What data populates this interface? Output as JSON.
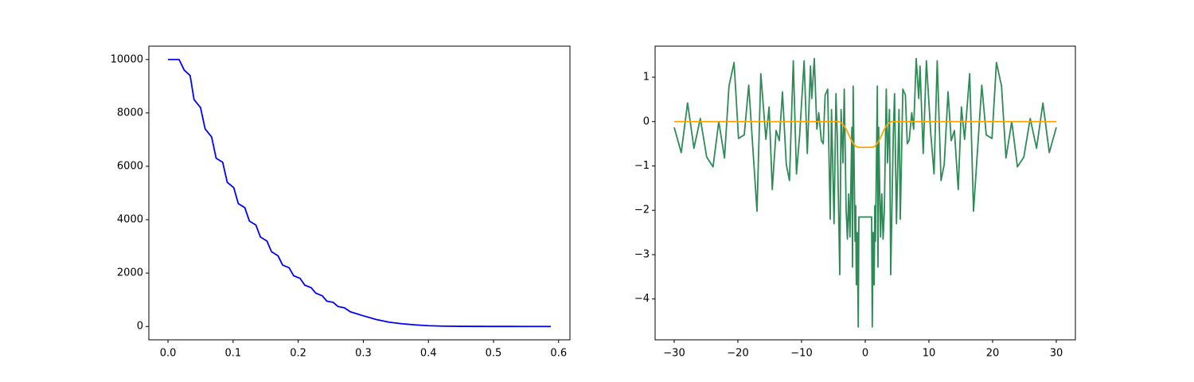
{
  "chart_data": [
    {
      "type": "line",
      "x": [
        0,
        0.017,
        0.025,
        0.034,
        0.04,
        0.05,
        0.057,
        0.067,
        0.074,
        0.084,
        0.091,
        0.101,
        0.108,
        0.118,
        0.125,
        0.135,
        0.142,
        0.152,
        0.159,
        0.169,
        0.176,
        0.186,
        0.193,
        0.203,
        0.21,
        0.22,
        0.227,
        0.237,
        0.244,
        0.254,
        0.261,
        0.271,
        0.28,
        0.3,
        0.32,
        0.34,
        0.36,
        0.38,
        0.4,
        0.42,
        0.45,
        0.5,
        0.55,
        0.588
      ],
      "series": [
        {
          "color": "#0000ff",
          "values": [
            10000,
            10000,
            9600,
            9400,
            8500,
            8200,
            7400,
            7100,
            6300,
            6150,
            5400,
            5200,
            4600,
            4450,
            3950,
            3800,
            3350,
            3200,
            2800,
            2650,
            2300,
            2200,
            1900,
            1800,
            1550,
            1450,
            1250,
            1150,
            950,
            900,
            750,
            700,
            550,
            400,
            260,
            160,
            100,
            60,
            30,
            15,
            5,
            1,
            0,
            0
          ]
        }
      ],
      "xlim": [
        -0.0294,
        0.6174
      ],
      "ylim": [
        -500,
        10500
      ],
      "xticks": [
        {
          "value": 0,
          "label": "0.0"
        },
        0.1,
        0.2,
        0.3,
        0.4,
        0.5,
        0.6
      ],
      "yticks": [
        0,
        2000,
        4000,
        6000,
        8000,
        10000
      ]
    },
    {
      "type": "line",
      "series": [
        {
          "color": "#2e8b57",
          "x": [
            -30,
            -28.9,
            -27.9,
            -26.9,
            -25.9,
            -24.9,
            -23.9,
            -23,
            -22.1,
            -21.4,
            -20.6,
            -19.9,
            -19,
            -18.3,
            -17,
            -16.4,
            -15.6,
            -15.1,
            -14.6,
            -14,
            -13.5,
            -13,
            -12.4,
            -11.9,
            -11.3,
            -10.8,
            -10.3,
            -9.6,
            -9.1,
            -8.6,
            -8.4,
            -8,
            -7.6,
            -7.3,
            -6.9,
            -6.6,
            -6.3,
            -5.9,
            -5.5,
            -5.3,
            -4.9,
            -4.6,
            -4.4,
            -4,
            -3.8,
            -3.5,
            -3.3,
            -3,
            -2.8,
            -2.6,
            -2.4,
            -2.1,
            -2,
            -1.9,
            -1.6,
            -1.5,
            -1.4,
            -1.25,
            -1.1,
            -1,
            0,
            1,
            1.1,
            1.25,
            1.4,
            1.5,
            1.6,
            1.9,
            2,
            2.1,
            2.4,
            2.6,
            2.8,
            3,
            3.3,
            3.5,
            3.8,
            4,
            4.4,
            4.6,
            4.9,
            5.3,
            5.5,
            5.9,
            6.3,
            6.6,
            6.9,
            7.3,
            7.6,
            8,
            8.4,
            8.6,
            9.1,
            9.6,
            10.3,
            10.8,
            11.3,
            11.9,
            12.4,
            13,
            13.5,
            14,
            14.6,
            15.1,
            15.6,
            16.4,
            17,
            18.3,
            19,
            19.9,
            20.6,
            21.4,
            22.1,
            23,
            23.9,
            24.9,
            25.9,
            26.9,
            27.9,
            28.9,
            30
          ],
          "values": [
            -0.13,
            -0.7,
            0.42,
            -0.6,
            0.07,
            -0.8,
            -1.02,
            0,
            -0.82,
            0.8,
            1.33,
            -0.38,
            -0.3,
            0.82,
            -2.02,
            1.08,
            -0.4,
            0.33,
            -1.53,
            -0.2,
            -0.43,
            0.67,
            -0.97,
            -1.33,
            1.37,
            -1.18,
            -0.3,
            1.37,
            -0.72,
            1.25,
            0.52,
            1.42,
            -0.17,
            0.2,
            -0.42,
            -0.5,
            0.6,
            0.73,
            -2.2,
            0.27,
            -2.3,
            0.63,
            -0.3,
            -3.45,
            0.27,
            -0.93,
            0.73,
            -2,
            -2.65,
            -1.63,
            -2.6,
            -0.13,
            -3.28,
            0.8,
            -2.7,
            -1.9,
            -3.68,
            -2.5,
            -4.63,
            -2.15,
            -2.15,
            -2.15,
            -4.63,
            -2.5,
            -3.68,
            -1.9,
            -2.7,
            0.8,
            -3.28,
            -0.13,
            -2.6,
            -1.63,
            -2.65,
            -2,
            0.73,
            -0.93,
            0.27,
            -3.45,
            -0.3,
            0.63,
            -2.3,
            0.27,
            -2.2,
            0.73,
            0.6,
            -0.5,
            -0.42,
            0.2,
            -0.17,
            1.42,
            0.52,
            1.25,
            -0.72,
            1.37,
            -0.3,
            -1.18,
            1.37,
            -1.33,
            -0.97,
            0.67,
            -0.43,
            -0.2,
            -1.53,
            0.33,
            -0.4,
            1.08,
            -2.02,
            0.82,
            -0.3,
            -0.38,
            1.33,
            0.8,
            -0.82,
            0,
            -1.02,
            -0.8,
            0.07,
            -0.6,
            0.42,
            -0.7,
            -0.13
          ]
        },
        {
          "color": "#ffa500",
          "x": [
            -30,
            -4.2,
            -4,
            -3.5,
            -3,
            -2.5,
            -2,
            -1.5,
            -1,
            0,
            1,
            1.5,
            2,
            2.5,
            3,
            3.5,
            4,
            4.2,
            30
          ],
          "values": [
            0,
            0,
            -0.01,
            -0.06,
            -0.17,
            -0.33,
            -0.47,
            -0.56,
            -0.58,
            -0.58,
            -0.58,
            -0.56,
            -0.47,
            -0.33,
            -0.17,
            -0.06,
            -0.01,
            0,
            0
          ]
        }
      ],
      "xlim": [
        -33,
        33
      ],
      "ylim": [
        -4.92,
        1.7
      ],
      "xticks": [
        {
          "value": -30,
          "label": "−30"
        },
        {
          "value": -20,
          "label": "−20"
        },
        {
          "value": -10,
          "label": "−10"
        },
        0,
        10,
        20,
        30
      ],
      "yticks": [
        {
          "value": -4,
          "label": "−4"
        },
        {
          "value": -3,
          "label": "−3"
        },
        {
          "value": -2,
          "label": "−2"
        },
        {
          "value": -1,
          "label": "−1"
        },
        0,
        1
      ]
    }
  ]
}
